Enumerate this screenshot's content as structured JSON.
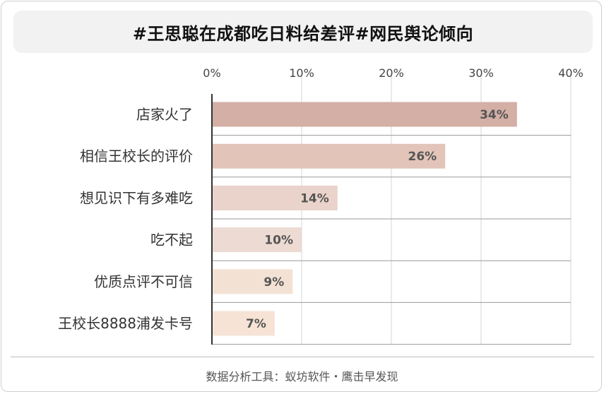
{
  "title": "#王思聪在成都吃日料给差评#网民舆论倾向",
  "footer": "数据分析工具：蚁坊软件・鹰击早发现",
  "chart_data": {
    "type": "bar",
    "orientation": "horizontal",
    "categories": [
      "店家火了",
      "相信王校长的评价",
      "想见识下有多难吃",
      "吃不起",
      "优质点评不可信",
      "王校长8888浦发卡号"
    ],
    "values": [
      34,
      26,
      14,
      10,
      9,
      7
    ],
    "value_labels": [
      "34%",
      "26%",
      "14%",
      "10%",
      "9%",
      "7%"
    ],
    "bar_colors": [
      "#d3afa6",
      "#e2c4b9",
      "#ead3cb",
      "#eddad3",
      "#f3e2d4",
      "#f6e3d6"
    ],
    "xlim": [
      0,
      40
    ],
    "xticks": [
      0,
      10,
      20,
      30,
      40
    ],
    "xtick_labels": [
      "0%",
      "10%",
      "20%",
      "30%",
      "40%"
    ],
    "xlabel": "",
    "ylabel": "",
    "grid": true,
    "legend": "none"
  }
}
